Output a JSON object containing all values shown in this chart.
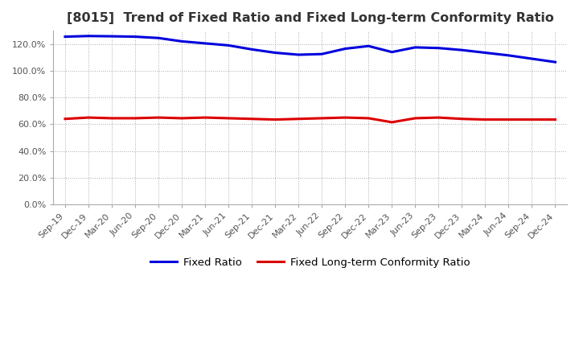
{
  "title": "[8015]  Trend of Fixed Ratio and Fixed Long-term Conformity Ratio",
  "title_fontsize": 11.5,
  "x_labels": [
    "Sep-19",
    "Dec-19",
    "Mar-20",
    "Jun-20",
    "Sep-20",
    "Dec-20",
    "Mar-21",
    "Jun-21",
    "Sep-21",
    "Dec-21",
    "Mar-22",
    "Jun-22",
    "Sep-22",
    "Dec-22",
    "Mar-23",
    "Jun-23",
    "Sep-23",
    "Dec-23",
    "Mar-24",
    "Jun-24",
    "Sep-24",
    "Dec-24"
  ],
  "fixed_ratio": [
    125.5,
    126.0,
    125.8,
    125.5,
    124.5,
    122.0,
    120.5,
    119.0,
    116.0,
    113.5,
    112.0,
    112.5,
    116.5,
    118.5,
    114.0,
    117.5,
    117.0,
    115.5,
    113.5,
    111.5,
    109.0,
    106.5
  ],
  "fixed_lt_ratio": [
    64.0,
    65.0,
    64.5,
    64.5,
    65.0,
    64.5,
    65.0,
    64.5,
    64.0,
    63.5,
    64.0,
    64.5,
    65.0,
    64.5,
    61.5,
    64.5,
    65.0,
    64.0,
    63.5,
    63.5,
    63.5,
    63.5
  ],
  "fixed_ratio_color": "#0000dd",
  "fixed_lt_ratio_color": "#dd0000",
  "ylim": [
    0,
    130
  ],
  "yticks": [
    0,
    20,
    40,
    60,
    80,
    100,
    120
  ],
  "background_color": "#ffffff",
  "grid_color": "#aaaaaa",
  "line_width": 2.2,
  "legend_labels": [
    "Fixed Ratio",
    "Fixed Long-term Conformity Ratio"
  ],
  "tick_color": "#555555",
  "tick_fontsize": 8.0
}
